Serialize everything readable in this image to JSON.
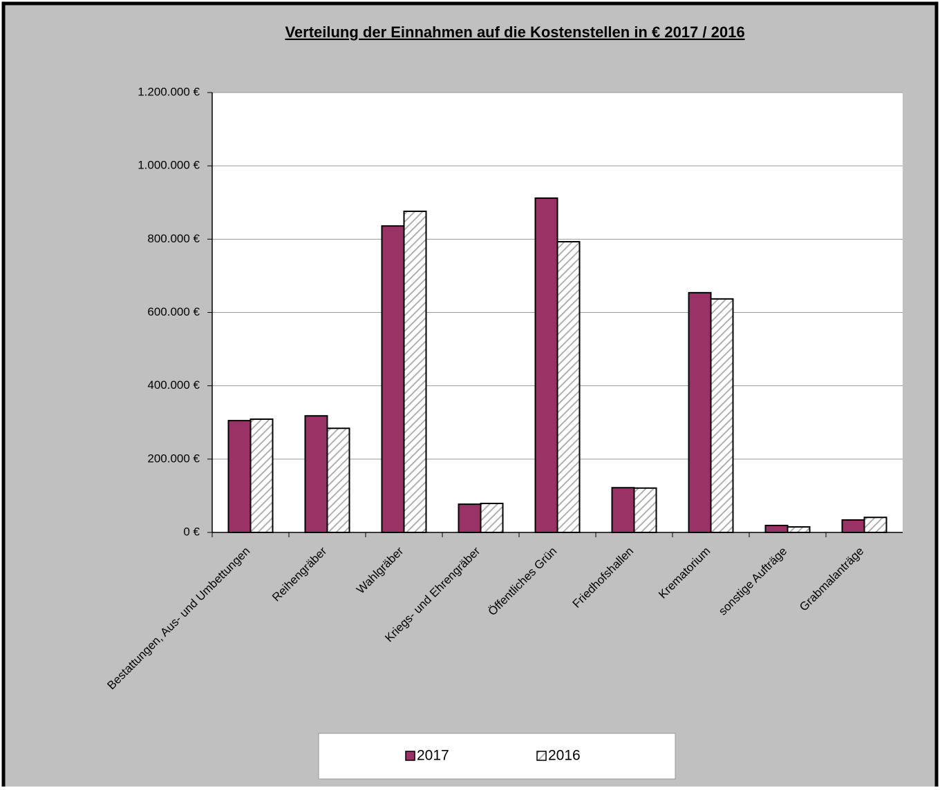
{
  "chart_data": {
    "type": "bar",
    "title": "Verteilung der Einnahmen auf die Kostenstellen in €  2017 / 2016",
    "categories": [
      "Bestattungen, Aus- und Umbettungen",
      "Reihengräber",
      "Wahlgräber",
      "Kriegs- und Ehrengräber",
      "Öffentliches Grün",
      "Friedhofshallen",
      "Krematorium",
      "sonstige Aufträge",
      "Grabmalanträge"
    ],
    "series": [
      {
        "name": "2017",
        "color": "#993366",
        "values": [
          305000,
          318000,
          836000,
          77000,
          912000,
          122000,
          654000,
          19000,
          34000
        ]
      },
      {
        "name": "2016",
        "color": "#b0b0b0",
        "pattern": "hatch",
        "values": [
          309000,
          284000,
          876000,
          79000,
          793000,
          121000,
          637000,
          15000,
          41000
        ]
      }
    ],
    "ylim": [
      0,
      1200000
    ],
    "yticks": [
      {
        "value": 0,
        "label": "0 €"
      },
      {
        "value": 200000,
        "label": "200.000 €"
      },
      {
        "value": 400000,
        "label": "400.000 €"
      },
      {
        "value": 600000,
        "label": "600.000 €"
      },
      {
        "value": 800000,
        "label": "800.000 €"
      },
      {
        "value": 1000000,
        "label": "1.000.000 €"
      },
      {
        "value": 1200000,
        "label": "1.200.000 €"
      }
    ],
    "grid": true,
    "legend": "bottom"
  }
}
